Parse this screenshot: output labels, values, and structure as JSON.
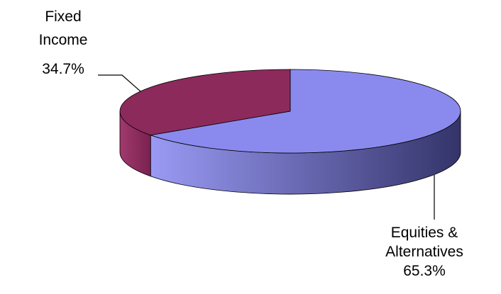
{
  "chart_data": {
    "type": "pie",
    "style": "3d",
    "slices": [
      {
        "label_lines": [
          "Equities &",
          "Alternatives"
        ],
        "value": 65.3,
        "value_label": "65.3%",
        "color": "#8a8aee",
        "side_dark": "#34346a",
        "side_light": "#9a9af5"
      },
      {
        "label_lines": [
          "Fixed",
          "Income"
        ],
        "value": 34.7,
        "value_label": "34.7%",
        "color": "#8c2a5c",
        "side_dark": "#7a2150",
        "side_light": "#a03a6c"
      }
    ],
    "legend": "none",
    "title": ""
  }
}
